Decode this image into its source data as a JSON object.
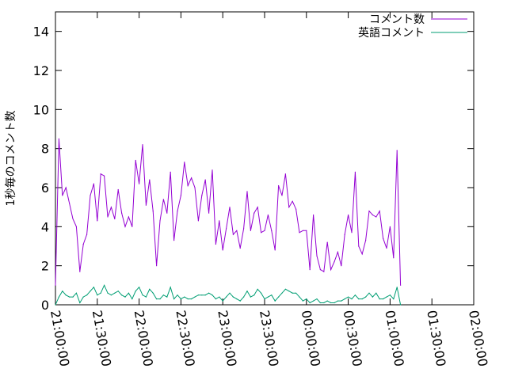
{
  "chart_data": {
    "type": "line",
    "title": "",
    "xlabel": "",
    "ylabel": "1秒毎のコメント数",
    "ylim": [
      0,
      15
    ],
    "yticks": [
      0,
      2,
      4,
      6,
      8,
      10,
      12,
      14
    ],
    "xlim": [
      "21:00:00",
      "02:00:00"
    ],
    "xticks": [
      "21:00:00",
      "21:30:00",
      "22:00:00",
      "22:30:00",
      "23:00:00",
      "23:30:00",
      "00:00:00",
      "00:30:00",
      "01:00:00",
      "01:30:00",
      "02:00:00"
    ],
    "grid": false,
    "legend_position": "top-right",
    "series_step_minutes": 2.5,
    "series": [
      {
        "name": "コメント数",
        "color": "#9400d3",
        "values": [
          1.0,
          8.5,
          5.6,
          6.0,
          5.2,
          4.4,
          4.0,
          1.7,
          3.1,
          3.6,
          5.6,
          6.2,
          4.3,
          6.7,
          6.6,
          4.5,
          5.0,
          4.4,
          5.9,
          4.7,
          4.0,
          4.5,
          4.0,
          7.4,
          6.2,
          8.2,
          5.1,
          6.4,
          4.8,
          2.0,
          4.3,
          5.4,
          4.7,
          6.8,
          3.3,
          4.8,
          5.6,
          7.3,
          6.1,
          6.5,
          6.0,
          4.3,
          5.6,
          6.4,
          4.7,
          6.9,
          3.1,
          4.3,
          2.8,
          3.9,
          5.0,
          3.6,
          3.8,
          2.9,
          3.9,
          5.8,
          3.8,
          4.7,
          5.0,
          3.7,
          3.8,
          4.6,
          3.8,
          2.8,
          6.1,
          5.6,
          6.7,
          5.0,
          5.3,
          4.9,
          3.7,
          3.8,
          3.8,
          1.8,
          4.6,
          2.5,
          1.8,
          1.7,
          3.2,
          1.8,
          2.2,
          2.7,
          2.0,
          3.6,
          4.6,
          3.7,
          6.8,
          3.0,
          2.6,
          3.3,
          4.8,
          4.6,
          4.5,
          4.8,
          3.4,
          2.9,
          4.0,
          2.4,
          7.9,
          1.0
        ]
      },
      {
        "name": "英語コメント",
        "color": "#009e73",
        "values": [
          0.0,
          0.4,
          0.7,
          0.5,
          0.4,
          0.4,
          0.6,
          0.1,
          0.4,
          0.5,
          0.7,
          0.9,
          0.5,
          0.6,
          1.0,
          0.6,
          0.5,
          0.6,
          0.7,
          0.5,
          0.4,
          0.6,
          0.3,
          0.7,
          0.9,
          0.5,
          0.4,
          0.8,
          0.6,
          0.3,
          0.3,
          0.5,
          0.4,
          0.9,
          0.3,
          0.5,
          0.3,
          0.4,
          0.3,
          0.3,
          0.4,
          0.5,
          0.5,
          0.5,
          0.6,
          0.5,
          0.3,
          0.4,
          0.2,
          0.4,
          0.6,
          0.4,
          0.3,
          0.2,
          0.4,
          0.7,
          0.4,
          0.5,
          0.8,
          0.6,
          0.3,
          0.4,
          0.5,
          0.2,
          0.4,
          0.6,
          0.8,
          0.7,
          0.6,
          0.6,
          0.4,
          0.2,
          0.3,
          0.1,
          0.2,
          0.3,
          0.1,
          0.1,
          0.2,
          0.1,
          0.1,
          0.2,
          0.2,
          0.3,
          0.4,
          0.3,
          0.5,
          0.3,
          0.3,
          0.4,
          0.6,
          0.4,
          0.6,
          0.3,
          0.3,
          0.4,
          0.5,
          0.3,
          0.9,
          0.0
        ]
      }
    ]
  }
}
